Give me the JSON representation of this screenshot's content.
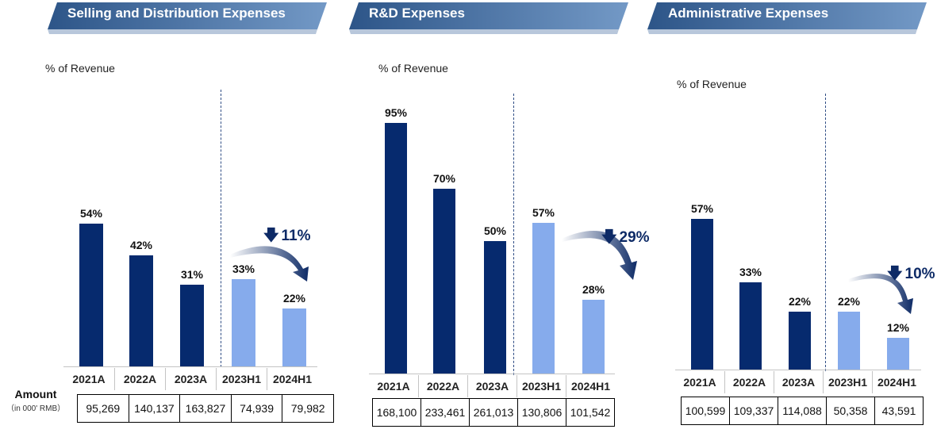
{
  "amount_label": "Amount",
  "amount_unit": "（in 000' RMB）",
  "colors": {
    "actual": "#062a6e",
    "half_year": "#86abec",
    "banner": "#3b5f92"
  },
  "chart_data": [
    {
      "type": "bar",
      "title": "Selling and Distribution Expenses",
      "ylabel": "% of Revenue",
      "categories": [
        "2021A",
        "2022A",
        "2023A",
        "2023H1",
        "2024H1"
      ],
      "values": [
        54,
        42,
        31,
        33,
        22
      ],
      "value_labels": [
        "54%",
        "42%",
        "31%",
        "33%",
        "22%"
      ],
      "amounts": [
        "95,269",
        "140,137",
        "163,827",
        "74,939",
        "79,982"
      ],
      "change": {
        "text": "11%",
        "direction": "down",
        "from": "2023H1",
        "to": "2024H1"
      },
      "ylim": [
        0,
        100
      ]
    },
    {
      "type": "bar",
      "title": "R&D Expenses",
      "ylabel": "% of Revenue",
      "categories": [
        "2021A",
        "2022A",
        "2023A",
        "2023H1",
        "2024H1"
      ],
      "values": [
        95,
        70,
        50,
        57,
        28
      ],
      "value_labels": [
        "95%",
        "70%",
        "50%",
        "57%",
        "28%"
      ],
      "amounts": [
        "168,100",
        "233,461",
        "261,013",
        "130,806",
        "101,542"
      ],
      "change": {
        "text": "29%",
        "direction": "down",
        "from": "2023H1",
        "to": "2024H1"
      },
      "ylim": [
        0,
        100
      ]
    },
    {
      "type": "bar",
      "title": "Administrative Expenses",
      "ylabel": "% of Revenue",
      "categories": [
        "2021A",
        "2022A",
        "2023A",
        "2023H1",
        "2024H1"
      ],
      "values": [
        57,
        33,
        22,
        22,
        12
      ],
      "value_labels": [
        "57%",
        "33%",
        "22%",
        "22%",
        "12%"
      ],
      "amounts": [
        "100,599",
        "109,337",
        "114,088",
        "50,358",
        "43,591"
      ],
      "change": {
        "text": "10%",
        "direction": "down",
        "from": "2023H1",
        "to": "2024H1"
      },
      "ylim": [
        0,
        100
      ]
    }
  ]
}
